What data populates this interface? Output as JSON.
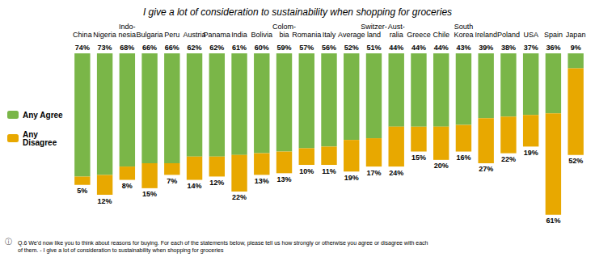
{
  "chart_data": {
    "type": "bar",
    "title": "I give a lot of consideration to sustainability when shopping for groceries",
    "categories": [
      "China",
      "Nigeria",
      "Indo-\nnesia",
      "Bulgaria",
      "Peru",
      "Austria",
      "Panama",
      "India",
      "Bolivia",
      "Colom-\nbia",
      "Romania",
      "Italy",
      "Average",
      "Switzer-\nland",
      "Aust-\nralia",
      "Greece",
      "Chile",
      "South\nKorea",
      "Ireland",
      "Poland",
      "USA",
      "Spain",
      "Japan"
    ],
    "series": [
      {
        "name": "Any Agree",
        "color": "#7ab648",
        "values": [
          74,
          73,
          68,
          66,
          66,
          62,
          62,
          61,
          60,
          59,
          57,
          56,
          52,
          51,
          44,
          44,
          44,
          43,
          39,
          38,
          37,
          36,
          9
        ],
        "value_labels": [
          "74%",
          "73%",
          "68%",
          "66%",
          "66%",
          "62%",
          "62%",
          "61%",
          "60%",
          "59%",
          "57%",
          "56%",
          "52%",
          "51%",
          "44%",
          "44%",
          "44%",
          "43%",
          "39%",
          "38%",
          "37%",
          "36%",
          "9%"
        ]
      },
      {
        "name": "Any\nDisagree",
        "color": "#e8a800",
        "values": [
          5,
          12,
          8,
          15,
          7,
          14,
          12,
          22,
          13,
          13,
          10,
          11,
          19,
          17,
          24,
          15,
          20,
          16,
          27,
          22,
          19,
          61,
          52
        ],
        "value_labels": [
          "5%",
          "12%",
          "8%",
          "15%",
          "7%",
          "14%",
          "12%",
          "22%",
          "13%",
          "13%",
          "10%",
          "11%",
          "19%",
          "17%",
          "24%",
          "15%",
          "20%",
          "16%",
          "27%",
          "22%",
          "19%",
          "61%",
          "52%"
        ]
      }
    ],
    "stacked": true,
    "data_labels": true,
    "ylim": [
      100,
      0
    ],
    "yticks": [
      0,
      25,
      50,
      75,
      100
    ],
    "grid": false,
    "tick_labels": "x",
    "legend": "left",
    "annotations": [
      "ⓘ",
      "Q.6 We'd now like you to think about reasons for buying. For each of the statements below, please tell us how strongly or otherwise you agree or disagree with each\nof them. - I give a lot of consideration to sustainability when shopping for groceries"
    ]
  }
}
